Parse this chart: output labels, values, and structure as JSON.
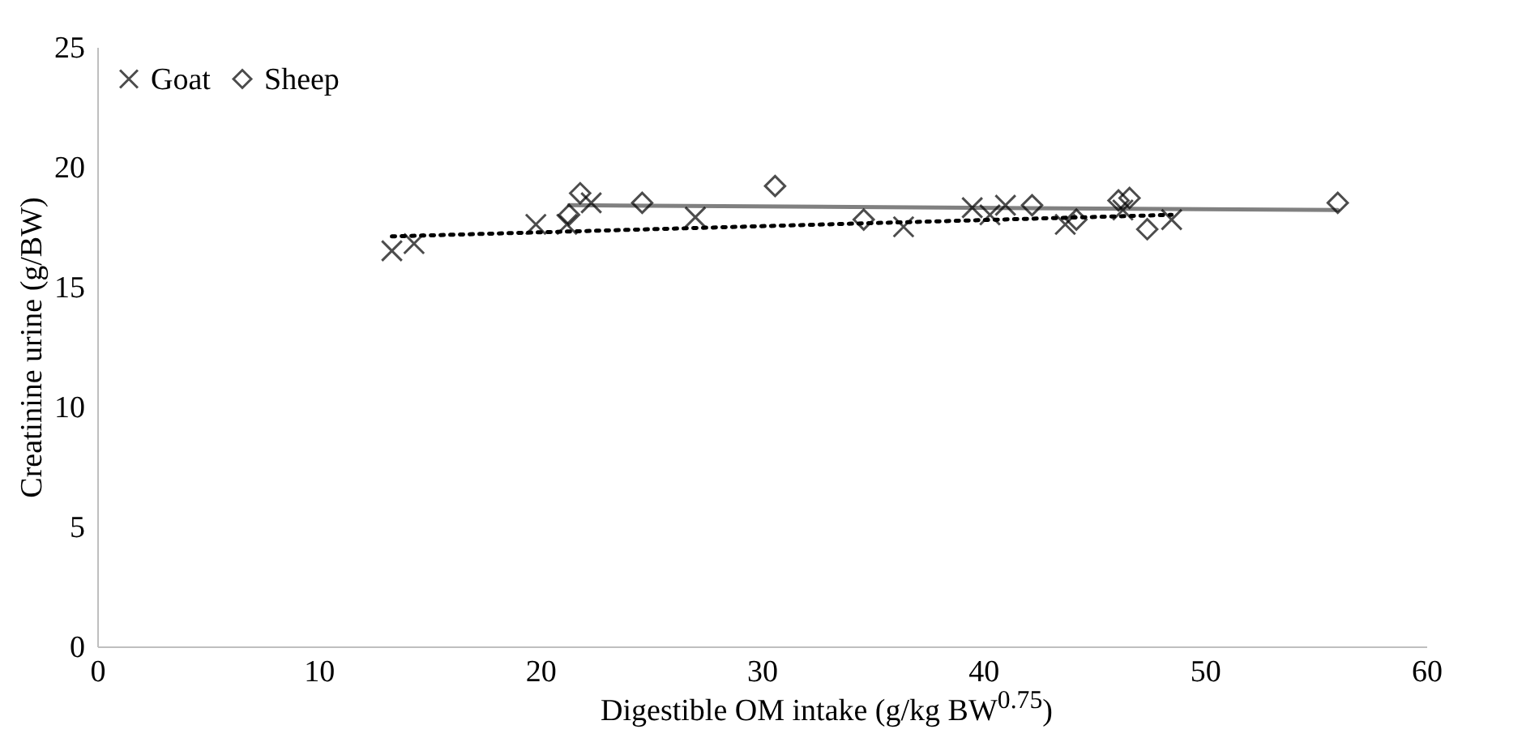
{
  "chart_data": {
    "type": "scatter",
    "xlabel": "Digestible OM intake (g/kg BW$^{0.75}$)",
    "ylabel": "Creatinine urine (g/BW)",
    "xlim": [
      0,
      60
    ],
    "xticks": [
      0,
      10,
      20,
      30,
      40,
      50,
      60
    ],
    "ylim": [
      0,
      25
    ],
    "yticks": [
      0,
      5,
      10,
      15,
      20,
      25
    ],
    "grid": false,
    "legend": "top left",
    "series": [
      {
        "name": "Goat",
        "marker": "cross",
        "color": "#000000",
        "x": [
          13.3,
          14.3,
          19.8,
          21.2,
          22.3,
          27,
          36.4,
          39.5,
          40.3,
          41,
          43.7,
          46.3,
          48.5
        ],
        "values": [
          16.5,
          16.8,
          17.6,
          17.6,
          18.5,
          17.9,
          17.5,
          18.3,
          18.0,
          18.4,
          17.6,
          18.2,
          17.8
        ]
      },
      {
        "name": "Sheep",
        "marker": "diamond",
        "color": "#000000",
        "x": [
          21.3,
          21.8,
          24.6,
          30.6,
          34.6,
          42.2,
          44.2,
          46.1,
          46.6,
          47.4,
          56
        ],
        "values": [
          18.0,
          18.9,
          18.5,
          19.2,
          17.8,
          18.4,
          17.8,
          18.6,
          18.7,
          17.4,
          18.5
        ]
      },
      {
        "type": "line",
        "line_style": "dotted",
        "color": "#000000",
        "x": [
          13.3,
          48.5
        ],
        "values": [
          17.1,
          18.0
        ]
      },
      {
        "type": "line",
        "line_style": "solid",
        "color": "#808080",
        "x": [
          21.3,
          56
        ],
        "values": [
          18.4,
          18.2
        ]
      }
    ]
  }
}
